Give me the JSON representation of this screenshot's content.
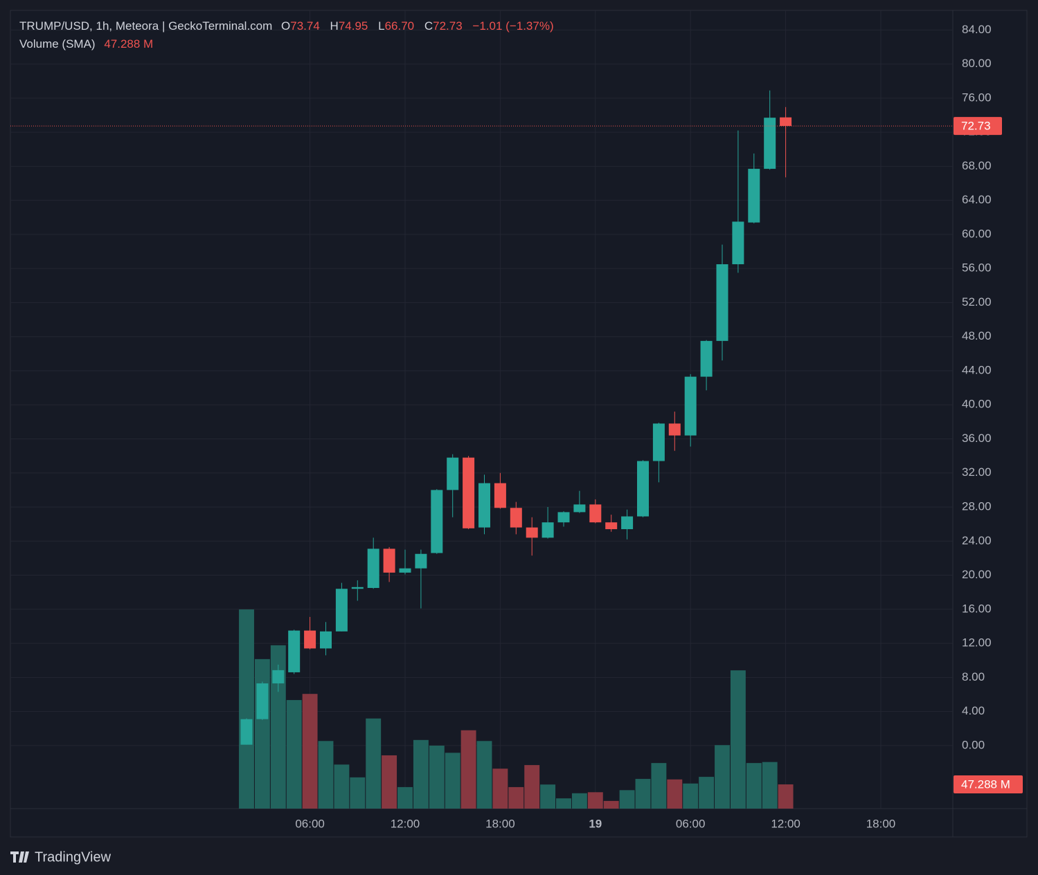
{
  "chart_data": {
    "type": "candlestick",
    "title": "TRUMP/USD, 1h, Meteora | GeckoTerminal.com",
    "legend": {
      "o": "O",
      "open": "73.74",
      "h": "H",
      "high": "74.95",
      "l": "L",
      "low": "66.70",
      "c": "C",
      "close": "72.73",
      "change": "−1.01 (−1.37%)"
    },
    "categories": [
      null,
      null,
      null,
      null,
      "06:00",
      null,
      null,
      null,
      null,
      null,
      "12:00",
      null,
      null,
      null,
      null,
      null,
      "18:00",
      null,
      null,
      null,
      null,
      null,
      "19",
      null,
      null,
      null,
      null,
      null,
      "06:00",
      null,
      null,
      null,
      null,
      null,
      "12:00",
      null,
      null,
      null,
      null,
      null,
      "18:00"
    ],
    "open": [
      0.1,
      3.1,
      7.3,
      8.6,
      13.5,
      11.4,
      13.4,
      18.4,
      18.5,
      23.1,
      20.3,
      20.8,
      22.6,
      30.0,
      33.8,
      25.6,
      30.8,
      27.9,
      25.6,
      24.4,
      26.2,
      27.4,
      28.3,
      26.2,
      25.4,
      26.9,
      33.4,
      37.8,
      36.4,
      43.3,
      47.5,
      56.5,
      61.4,
      67.7,
      73.74,
      null,
      null,
      null,
      null,
      null,
      null
    ],
    "high": [
      3.2,
      7.5,
      9.5,
      13.6,
      15.1,
      14.5,
      19.1,
      19.4,
      24.4,
      23.3,
      23.0,
      23.0,
      30.1,
      34.2,
      34.0,
      31.8,
      32.0,
      28.6,
      26.8,
      28.0,
      27.5,
      29.9,
      28.9,
      27.1,
      27.7,
      33.5,
      37.9,
      39.2,
      43.6,
      47.6,
      58.8,
      72.2,
      69.5,
      76.9,
      74.95,
      null,
      null,
      null,
      null,
      null,
      null
    ],
    "low": [
      0.1,
      3.0,
      6.3,
      8.4,
      11.3,
      10.6,
      13.4,
      17.0,
      18.4,
      19.2,
      20.1,
      16.1,
      22.5,
      26.8,
      25.4,
      24.8,
      27.8,
      24.8,
      22.3,
      24.3,
      25.7,
      27.3,
      26.1,
      25.1,
      24.2,
      26.8,
      30.9,
      34.6,
      35.1,
      41.7,
      45.2,
      55.5,
      61.3,
      67.6,
      66.7,
      null,
      null,
      null,
      null,
      null,
      null
    ],
    "close": [
      3.1,
      7.3,
      8.85,
      13.5,
      11.4,
      13.4,
      18.4,
      18.6,
      23.1,
      20.3,
      20.8,
      22.5,
      30.0,
      33.8,
      25.5,
      30.8,
      27.9,
      25.6,
      24.4,
      26.2,
      27.4,
      28.3,
      26.2,
      25.4,
      26.9,
      33.4,
      37.8,
      36.4,
      43.3,
      47.5,
      56.5,
      61.5,
      67.7,
      73.7,
      72.73,
      null,
      null,
      null,
      null,
      null,
      null
    ],
    "up_color": "#26a69a",
    "down_color": "#ef5350",
    "ylim": [
      -7.4,
      86.3
    ],
    "yticks": [
      {
        "value": 0,
        "label": "0.00"
      },
      {
        "value": 4,
        "label": "4.00"
      },
      {
        "value": 8,
        "label": "8.00"
      },
      {
        "value": 12,
        "label": "12.00"
      },
      {
        "value": 16,
        "label": "16.00"
      },
      {
        "value": 20,
        "label": "20.00"
      },
      {
        "value": 24,
        "label": "24.00"
      },
      {
        "value": 28,
        "label": "28.00"
      },
      {
        "value": 32,
        "label": "32.00"
      },
      {
        "value": 36,
        "label": "36.00"
      },
      {
        "value": 40,
        "label": "40.00"
      },
      {
        "value": 44,
        "label": "44.00"
      },
      {
        "value": 48,
        "label": "48.00"
      },
      {
        "value": 52,
        "label": "52.00"
      },
      {
        "value": 56,
        "label": "56.00"
      },
      {
        "value": 60,
        "label": "60.00"
      },
      {
        "value": 64,
        "label": "64.00"
      },
      {
        "value": 68,
        "label": "68.00"
      },
      {
        "value": 72,
        "label": "72.00"
      },
      {
        "value": 76,
        "label": "76.00"
      },
      {
        "value": 80,
        "label": "80.00"
      },
      {
        "value": 84,
        "label": "84.00"
      }
    ],
    "grid": true,
    "volume": {
      "name": "Volume (SMA)",
      "last_label": "47.288 M",
      "ylim": [
        0,
        1559
      ],
      "up_color": "#22645e",
      "down_color": "#883841",
      "values": [
        389,
        292,
        319,
        212,
        224,
        132,
        86,
        61,
        176,
        104,
        42,
        134,
        123,
        109,
        153,
        132,
        78,
        42,
        85,
        47,
        20,
        30,
        32,
        15,
        36,
        58,
        89,
        57,
        49,
        62,
        124,
        270,
        89,
        91,
        47.288,
        null,
        null,
        null,
        null,
        null,
        null
      ]
    },
    "brand": "TradingView"
  }
}
